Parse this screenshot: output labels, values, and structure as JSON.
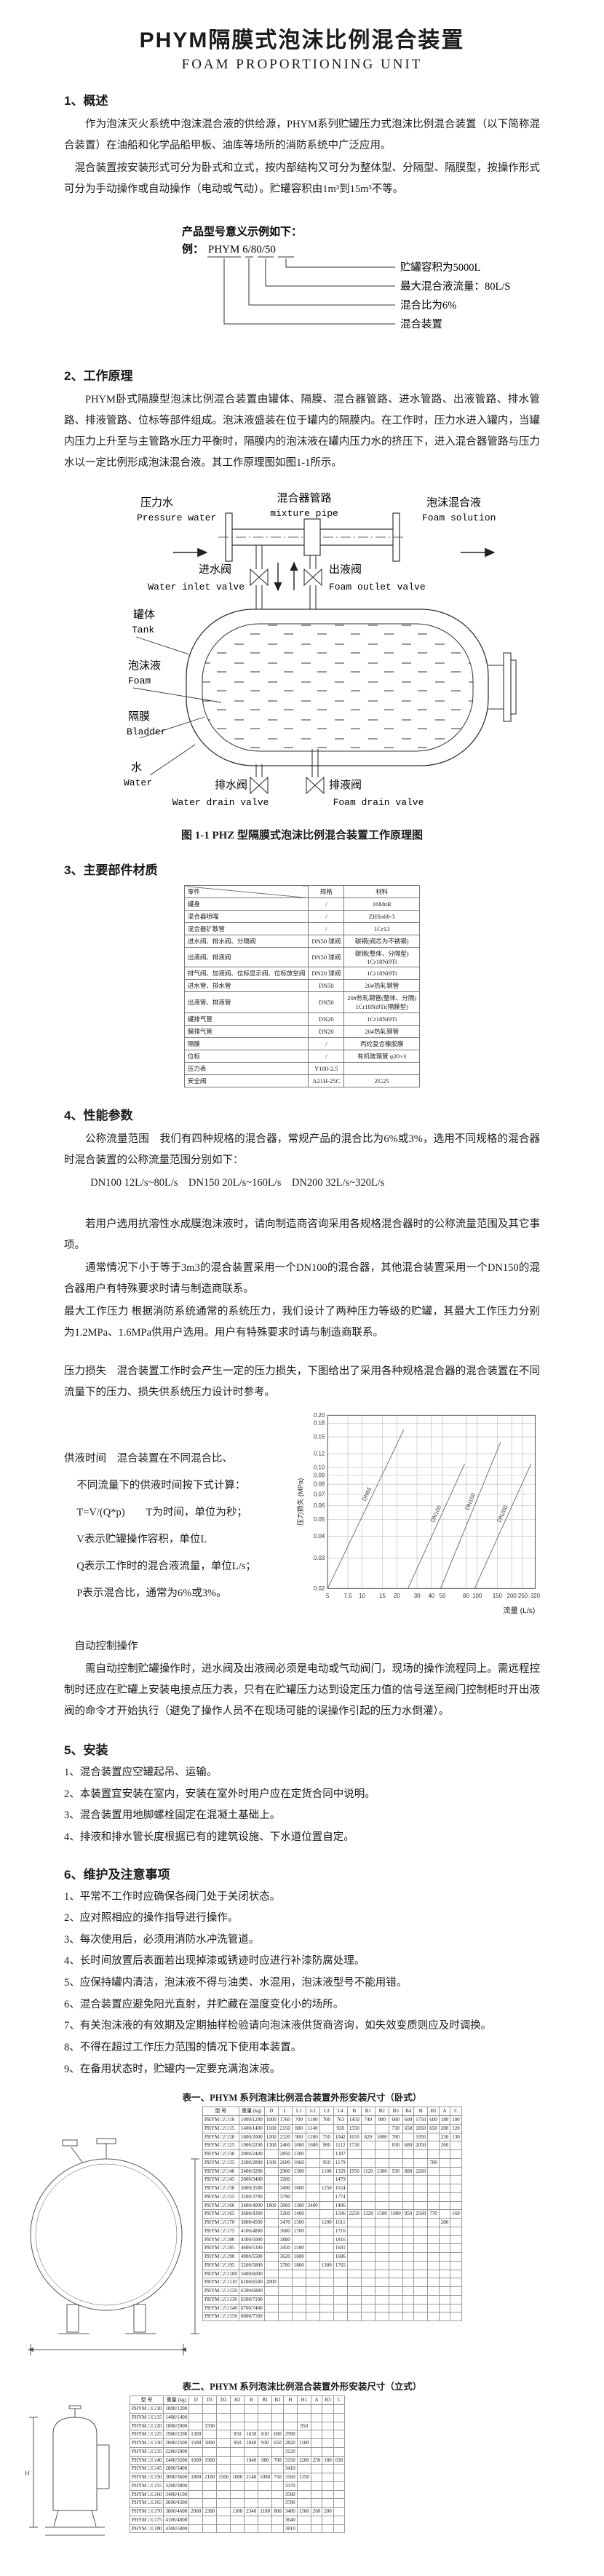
{
  "page": {
    "title": "PHYM隔膜式泡沫比例混合装置",
    "subtitle": "FOAM PROPORTIONING UNIT"
  },
  "sections": {
    "s1": {
      "heading": "1、概述",
      "p1": "作为泡沫灭火系统中泡沫混合液的供给源，PHYM系列贮罐压力式泡沫比例混合装置（以下简称混合装置）在油船和化学品船甲板、油库等场所的消防系统中广泛应用。",
      "p2": "混合装置按安装形式可分为卧式和立式，按内部结构又可分为整体型、分隔型、隔膜型，按操作形式可分为手动操作或自动操作（电动或气动）。贮罐容积由1m³到15m³不等。"
    },
    "model_example": {
      "intro": "产品型号意义示例如下：",
      "example_prefix": "例：",
      "code": "PHYM 6/80/50",
      "labels": [
        "贮罐容积为5000L",
        "最大混合液流量：80L/S",
        "混合比为6%",
        "混合装置"
      ]
    },
    "s2": {
      "heading": "2、工作原理",
      "p1": "PHYM卧式隔膜型泡沫比例混合装置由罐体、隔膜、混合器管路、进水管路、出液管路、排水管路、排液管路、位标等部件组成。泡沫液盛装在位于罐内的隔膜内。在工作时，压力水进入罐内，当罐内压力上升至与主管路水压力平衡时，隔膜内的泡沫液在罐内压力水的挤压下，进入混合器管路与压力水以一定比例形成泡沫混合液。其工作原理图如图1-1所示。",
      "figure": {
        "caption": "图 1-1 PHZ 型隔膜式泡沫比例混合装置工作原理图",
        "labels": {
          "pressure_water_zh": "压力水",
          "pressure_water_en": "Pressure water",
          "mixture_pipe_zh": "混合器管路",
          "mixture_pipe_en": "mixture pipe",
          "foam_solution_zh": "泡沫混合液",
          "foam_solution_en": "Foam solution",
          "water_inlet_valve_zh": "进水阀",
          "water_inlet_valve_en": "Water inlet valve",
          "foam_outlet_valve_zh": "出液阀",
          "foam_outlet_valve_en": "Foam outlet valve",
          "tank_zh": "罐体",
          "tank_en": "Tank",
          "foam_zh": "泡沫液",
          "foam_en": "Foam",
          "bladder_zh": "隔膜",
          "bladder_en": "Bladder",
          "water_zh": "水",
          "water_en": "Water",
          "water_drain_valve_zh": "排水阀",
          "water_drain_valve_en": "Water drain valve",
          "foam_drain_valve_zh": "排液阀",
          "foam_drain_valve_en": "Foam drain valve"
        }
      }
    },
    "s3": {
      "heading": "3、主要部件材质",
      "table": {
        "headers": [
          "零件",
          "规格",
          "材料"
        ],
        "rows": [
          [
            "罐身",
            "/",
            "16MnR"
          ],
          [
            "混合器喷嘴",
            "/",
            "ZHSn60-3"
          ],
          [
            "混合器扩散管",
            "/",
            "1Cr13"
          ],
          [
            "进水阀、排水阀、分隔阀",
            "DN50 球阀",
            "碳钢(阀芯为不锈钢)"
          ],
          [
            "出液阀、排液阀",
            "DN50 球阀",
            "碳钢(整体、分隔型)\n1Cr18Ni9Ti"
          ],
          [
            "排气阀、加液阀、位标显示阀、位标放空阀",
            "DN20 球阀",
            "1Cr18Ni9Ti"
          ],
          [
            "进水管、排水管",
            "DN50",
            "20#热轧钢管"
          ],
          [
            "出液管、排液管",
            "DN50",
            "20#热轧钢管(整体、分隔)\n1Cr18Ni9Ti(隔膜型)"
          ],
          [
            "罐排气管",
            "DN20",
            "1Cr18Ni9Ti"
          ],
          [
            "膜排气管",
            "DN20",
            "20#热轧钢管"
          ],
          [
            "隔膜",
            "/",
            "丙纶复合橡胶膜"
          ],
          [
            "位标",
            "/",
            "有机玻璃管 φ20×3"
          ],
          [
            "压力表",
            "Y100-2.5",
            ""
          ],
          [
            "安全阀",
            "A21H-25C",
            "ZG25"
          ]
        ]
      }
    },
    "s4": {
      "heading": "4、性能参数",
      "p1": "公称流量范围　我们有四种规格的混合器，常规产品的混合比为6%或3%，选用不同规格的混合器时混合装置的公称流量范围分别如下：",
      "flow_line": "DN100 12L/s~80L/s　DN150 20L/s~160L/s　DN200 32L/s~320L/s",
      "p2": "若用户选用抗溶性水成膜泡沫液时，请向制造商咨询采用各规格混合器时的公称流量范围及其它事项。",
      "p3": "通常情况下小于等于3m3的混合装置采用一个DN100的混合器，其他混合装置采用一个DN150的混合器用户有特殊要求时请与制造商联系。",
      "p4": "最大工作压力 根据消防系统通常的系统压力，我们设计了两种压力等级的贮罐，其最大工作压力分别为1.2MPa、1.6MPa供用户选用。用户有特殊要求时请与制造商联系。",
      "p5": "压力损失　混合装置工作时会产生一定的压力损失，下图给出了采用各种规格混合器的混合装置在不同流量下的压力、损失供系统压力设计时参考。",
      "supply_time_lines": [
        "供液时间　混合装置在不同混合比、",
        "不同流量下的供液时间按下式计算：",
        "T=V/(Q*p)　　T为时间，单位为秒；",
        "V表示贮罐操作容积，单位L",
        "Q表示工作时的混合液流量，单位L/s；",
        "P表示混合比，通常为6%或3%。"
      ],
      "auto_lead": "自动控制操作",
      "auto_p": "需自动控制贮罐操作时，进水阀及出液阀必须是电动或气动阀门，现场的操作流程同上。需远程控制时还应在贮罐上安装电接点压力表，只有在贮罐压力达到设定压力值的信号送至阀门控制柜时开出液阀的命令才开始执行（避免了操作人员不在现场可能的误操作引起的压力水倒灌）。"
    },
    "s5": {
      "heading": "5、安装",
      "items": [
        "1、混合装置应空罐起吊、运输。",
        "2、本装置宜安装在室内，安装在室外时用户应在定货合同中说明。",
        "3、混合装置用地脚螺栓固定在混凝土基础上。",
        "4、排液和排水管长度根据已有的建筑设施、下水道位置自定。"
      ]
    },
    "s6": {
      "heading": "6、维护及注意事项",
      "items": [
        "1、平常不工作时应确保各阀门处于关闭状态。",
        "2、应对照相应的操作指导进行操作。",
        "3、每次使用后，必须用消防水冲洗管道。",
        "4、长时间放置后表面若出现掉漆或锈迹时应进行补漆防腐处理。",
        "5、应保持罐内清洁，泡沫液不得与油类、水混用，泡沫液型号不能用错。",
        "6、混合装置应避免阳光直射，并贮藏在温度变化小的场所。",
        "7、有关泡沫液的有效期及定期抽样检验请向泡沫液供货商咨询，如失效变质则应及时调换。",
        "8、不得在超过工作压力范围的情况下使用本装置。",
        "9、在备用状态时，贮罐内一定要充满泡沫液。"
      ]
    }
  },
  "chart_data": {
    "type": "line",
    "xlabel": "流量 (L/s)",
    "ylabel": "压力损失 (MPa)",
    "x_scale": "log",
    "y_scale": "log",
    "xlim": [
      5,
      320
    ],
    "ylim": [
      0.02,
      0.2
    ],
    "grid": true,
    "x_ticks": [
      5,
      7.5,
      10,
      15,
      20,
      30,
      40,
      50,
      80,
      100,
      150,
      200,
      250,
      320
    ],
    "y_ticks": [
      0.02,
      0.03,
      0.04,
      0.05,
      0.06,
      0.07,
      0.08,
      0.09,
      0.1,
      0.12,
      0.15,
      0.18,
      0.2
    ],
    "series": [
      {
        "name": "DN65",
        "points": [
          [
            5,
            0.02
          ],
          [
            23,
            0.165
          ]
        ]
      },
      {
        "name": "DN100",
        "points": [
          [
            25,
            0.02
          ],
          [
            78,
            0.105
          ]
        ]
      },
      {
        "name": "DN150",
        "points": [
          [
            48,
            0.02
          ],
          [
            160,
            0.14
          ]
        ]
      },
      {
        "name": "DN200",
        "points": [
          [
            95,
            0.02
          ],
          [
            295,
            0.105
          ]
        ]
      }
    ]
  },
  "table1": {
    "caption": "表一、PHYM 系列泡沫比例混合装置外形安装尺寸（卧式）",
    "headers": [
      "型  号",
      "重量 (kg)",
      "D",
      "L",
      "L1",
      "L2",
      "L3",
      "L4",
      "B",
      "B1",
      "B2",
      "B3",
      "B4",
      "H",
      "H1",
      "A",
      "C"
    ],
    "rows": [
      [
        "PHYM □/□/10",
        "1000/1200",
        "1000",
        "1760",
        "700",
        "1100",
        "700",
        "763",
        "1450",
        "740",
        "900",
        "680",
        "600",
        "1750",
        "600",
        "180",
        "100"
      ],
      [
        "PHYM □/□/15",
        "1400/1400",
        "1100",
        "2150",
        "800",
        "1140",
        "",
        "930",
        "1550",
        "",
        "",
        "730",
        "650",
        "1850",
        "650",
        "200",
        "120"
      ],
      [
        "PHYM □/□/20",
        "1800/2000",
        "1200",
        "2320",
        "900",
        "1200",
        "750",
        "1042",
        "1650",
        "820",
        "1000",
        "780",
        "",
        "1950",
        "",
        "230",
        "130"
      ],
      [
        "PHYM □/□/25",
        "1900/2200",
        "1300",
        "2460",
        "1000",
        "1600",
        "900",
        "1112",
        "1730",
        "",
        "",
        "830",
        "680",
        "2050",
        "",
        "260",
        ""
      ],
      [
        "PHYM □/□/30",
        "2000/2400",
        "",
        "2850",
        "1300",
        "",
        "",
        "1307",
        "",
        "",
        "",
        "",
        "",
        "",
        "",
        "",
        ""
      ],
      [
        "PHYM □/□/35",
        "2200/2800",
        "1500",
        "2600",
        "1060",
        "",
        "950",
        "1179",
        "",
        "",
        "",
        "",
        "",
        "",
        "700",
        "",
        ""
      ],
      [
        "PHYM □/□/40",
        "2400/3200",
        "",
        "2900",
        "1300",
        "",
        "1100",
        "1329",
        "1950",
        "1120",
        "1300",
        "930",
        "800",
        "2260",
        "",
        "",
        ""
      ],
      [
        "PHYM □/□/45",
        "2800/3400",
        "",
        "3200",
        "",
        "",
        "",
        "1479",
        "",
        "",
        "",
        "",
        "",
        "",
        "",
        "",
        ""
      ],
      [
        "PHYM □/□/50",
        "3000/3500",
        "",
        "3490",
        "1600",
        "",
        "1250",
        "1624",
        "",
        "",
        "",
        "",
        "",
        "",
        "",
        "",
        ""
      ],
      [
        "PHYM □/□/55",
        "3200/3700",
        "",
        "3790",
        "",
        "",
        "",
        "1774",
        "",
        "",
        "",
        "",
        "",
        "",
        "",
        "",
        ""
      ],
      [
        "PHYM □/□/60",
        "3400/4000",
        "1800",
        "3060",
        "1300",
        "2400",
        "",
        "1406",
        "",
        "",
        "",
        "",
        "",
        "",
        "",
        "",
        ""
      ],
      [
        "PHYM □/□/65",
        "3600/4300",
        "",
        "3260",
        "1400",
        "",
        "",
        "1506",
        "2250",
        "1320",
        "1500",
        "1080",
        "950",
        "2560",
        "770",
        "",
        "160"
      ],
      [
        "PHYM □/□/70",
        "3800/4500",
        "",
        "3470",
        "1500",
        "",
        "1200",
        "1611",
        "",
        "",
        "",
        "",
        "",
        "",
        "",
        "280",
        ""
      ],
      [
        "PHYM □/□/75",
        "4100/4800",
        "",
        "3680",
        "1700",
        "",
        "",
        "1716",
        "",
        "",
        "",
        "",
        "",
        "",
        "",
        "",
        ""
      ],
      [
        "PHYM □/□/80",
        "4300/5000",
        "",
        "3880",
        "",
        "",
        "",
        "1816",
        "",
        "",
        "",
        "",
        "",
        "",
        "",
        "",
        ""
      ],
      [
        "PHYM □/□/85",
        "4600/5300",
        "",
        "3450",
        "1500",
        "",
        "",
        "1601",
        "",
        "",
        "",
        "",
        "",
        "",
        "",
        "",
        ""
      ],
      [
        "PHYM □/□/90",
        "4900/5500",
        "",
        "3620",
        "1600",
        "",
        "",
        "1686",
        "",
        "",
        "",
        "",
        "",
        "",
        "",
        "",
        ""
      ],
      [
        "PHYM □/□/95",
        "5200/5800",
        "",
        "3780",
        "1800",
        "",
        "1300",
        "1765",
        "",
        "",
        "",
        "",
        "",
        "",
        "",
        "",
        ""
      ],
      [
        "PHYM □/□/100",
        "5600/6000",
        "",
        "",
        "",
        "",
        "",
        "",
        "",
        "",
        "",
        "",
        "",
        "",
        "",
        "",
        ""
      ],
      [
        "PHYM □/□/110",
        "6100/6500",
        "2000",
        "",
        "",
        "",
        "",
        "",
        "",
        "",
        "",
        "",
        "",
        "",
        "",
        "",
        ""
      ],
      [
        "PHYM □/□/120",
        "6300/6800",
        "",
        "",
        "",
        "",
        "",
        "",
        "",
        "",
        "",
        "",
        "",
        "",
        "",
        "",
        ""
      ],
      [
        "PHYM □/□/130",
        "6500/7100",
        "",
        "",
        "",
        "",
        "",
        "",
        "",
        "",
        "",
        "",
        "",
        "",
        "",
        "",
        ""
      ],
      [
        "PHYM □/□/140",
        "6700/7400",
        "",
        "",
        "",
        "",
        "",
        "",
        "",
        "",
        "",
        "",
        "",
        "",
        "",
        "",
        ""
      ],
      [
        "PHYM □/□/150",
        "6800/7500",
        "",
        "",
        "",
        "",
        "",
        "",
        "",
        "",
        "",
        "",
        "",
        "",
        "",
        "",
        ""
      ]
    ]
  },
  "table2": {
    "caption": "表二、PHYM 系列泡沫比例混合装置外形安装尺寸（立式）",
    "headers": [
      "型  号",
      "重量 (kg)",
      "D",
      "D1",
      "D2",
      "H2",
      "B",
      "B1",
      "B2",
      "H",
      "H1",
      "A",
      "B3",
      "C"
    ],
    "rows": [
      [
        "PHYM □/□/10",
        "1000/1200",
        "",
        "",
        "",
        "",
        "",
        "",
        "",
        "",
        "",
        "",
        "",
        ""
      ],
      [
        "PHYM □/□/15",
        "1400/1400",
        "",
        "",
        "",
        "",
        "",
        "",
        "",
        "",
        "",
        "",
        "",
        ""
      ],
      [
        "PHYM □/□/20",
        "1800/2000",
        "",
        "1590",
        "",
        "",
        "",
        "",
        "",
        "",
        "950",
        "",
        "",
        ""
      ],
      [
        "PHYM □/□/25",
        "1900/2200",
        "1300",
        "",
        "",
        "850",
        "1630",
        "810",
        "600",
        "2990",
        "",
        "",
        "",
        ""
      ],
      [
        "PHYM □/□/30",
        "2000/2500",
        "1500",
        "1800",
        "",
        "950",
        "1840",
        "930",
        "650",
        "2820",
        "1100",
        "",
        "",
        ""
      ],
      [
        "PHYM □/□/35",
        "2200/2800",
        "",
        "",
        "",
        "",
        "",
        "",
        "",
        "3120",
        "",
        "",
        "",
        ""
      ],
      [
        "PHYM □/□/40",
        "2400/3200",
        "1600",
        "1900",
        "",
        "",
        "1940",
        "980",
        "700",
        "3150",
        "1200",
        "250",
        "180",
        "630"
      ],
      [
        "PHYM □/□/45",
        "2800/3400",
        "",
        "",
        "",
        "",
        "",
        "",
        "",
        "3410",
        "",
        "",
        "",
        ""
      ],
      [
        "PHYM □/□/50",
        "3000/3600",
        "1800",
        "2100",
        "1500",
        "1000",
        "2140",
        "1080",
        "750",
        "3160",
        "1350",
        "",
        "",
        ""
      ],
      [
        "PHYM □/□/55",
        "3200/3800",
        "",
        "",
        "",
        "",
        "",
        "",
        "",
        "3370",
        "",
        "",
        "",
        ""
      ],
      [
        "PHYM □/□/60",
        "3400/4100",
        "",
        "",
        "",
        "",
        "",
        "",
        "",
        "3580",
        "",
        "",
        "",
        ""
      ],
      [
        "PHYM □/□/65",
        "3600/4300",
        "",
        "",
        "",
        "",
        "",
        "",
        "",
        "3780",
        "",
        "",
        "",
        ""
      ],
      [
        "PHYM □/□/70",
        "3800/4600",
        "2000",
        "2300",
        "",
        "1100",
        "2340",
        "1180",
        "800",
        "3480",
        "1500",
        "260",
        "200",
        ""
      ],
      [
        "PHYM □/□/75",
        "4100/4800",
        "",
        "",
        "",
        "",
        "",
        "",
        "",
        "3640",
        "",
        "",
        "",
        ""
      ],
      [
        "PHYM □/□/80",
        "4300/5000",
        "",
        "",
        "",
        "",
        "",
        "",
        "",
        "3810",
        "",
        "",
        "",
        ""
      ]
    ]
  },
  "drawings": {
    "h_label": "H"
  }
}
